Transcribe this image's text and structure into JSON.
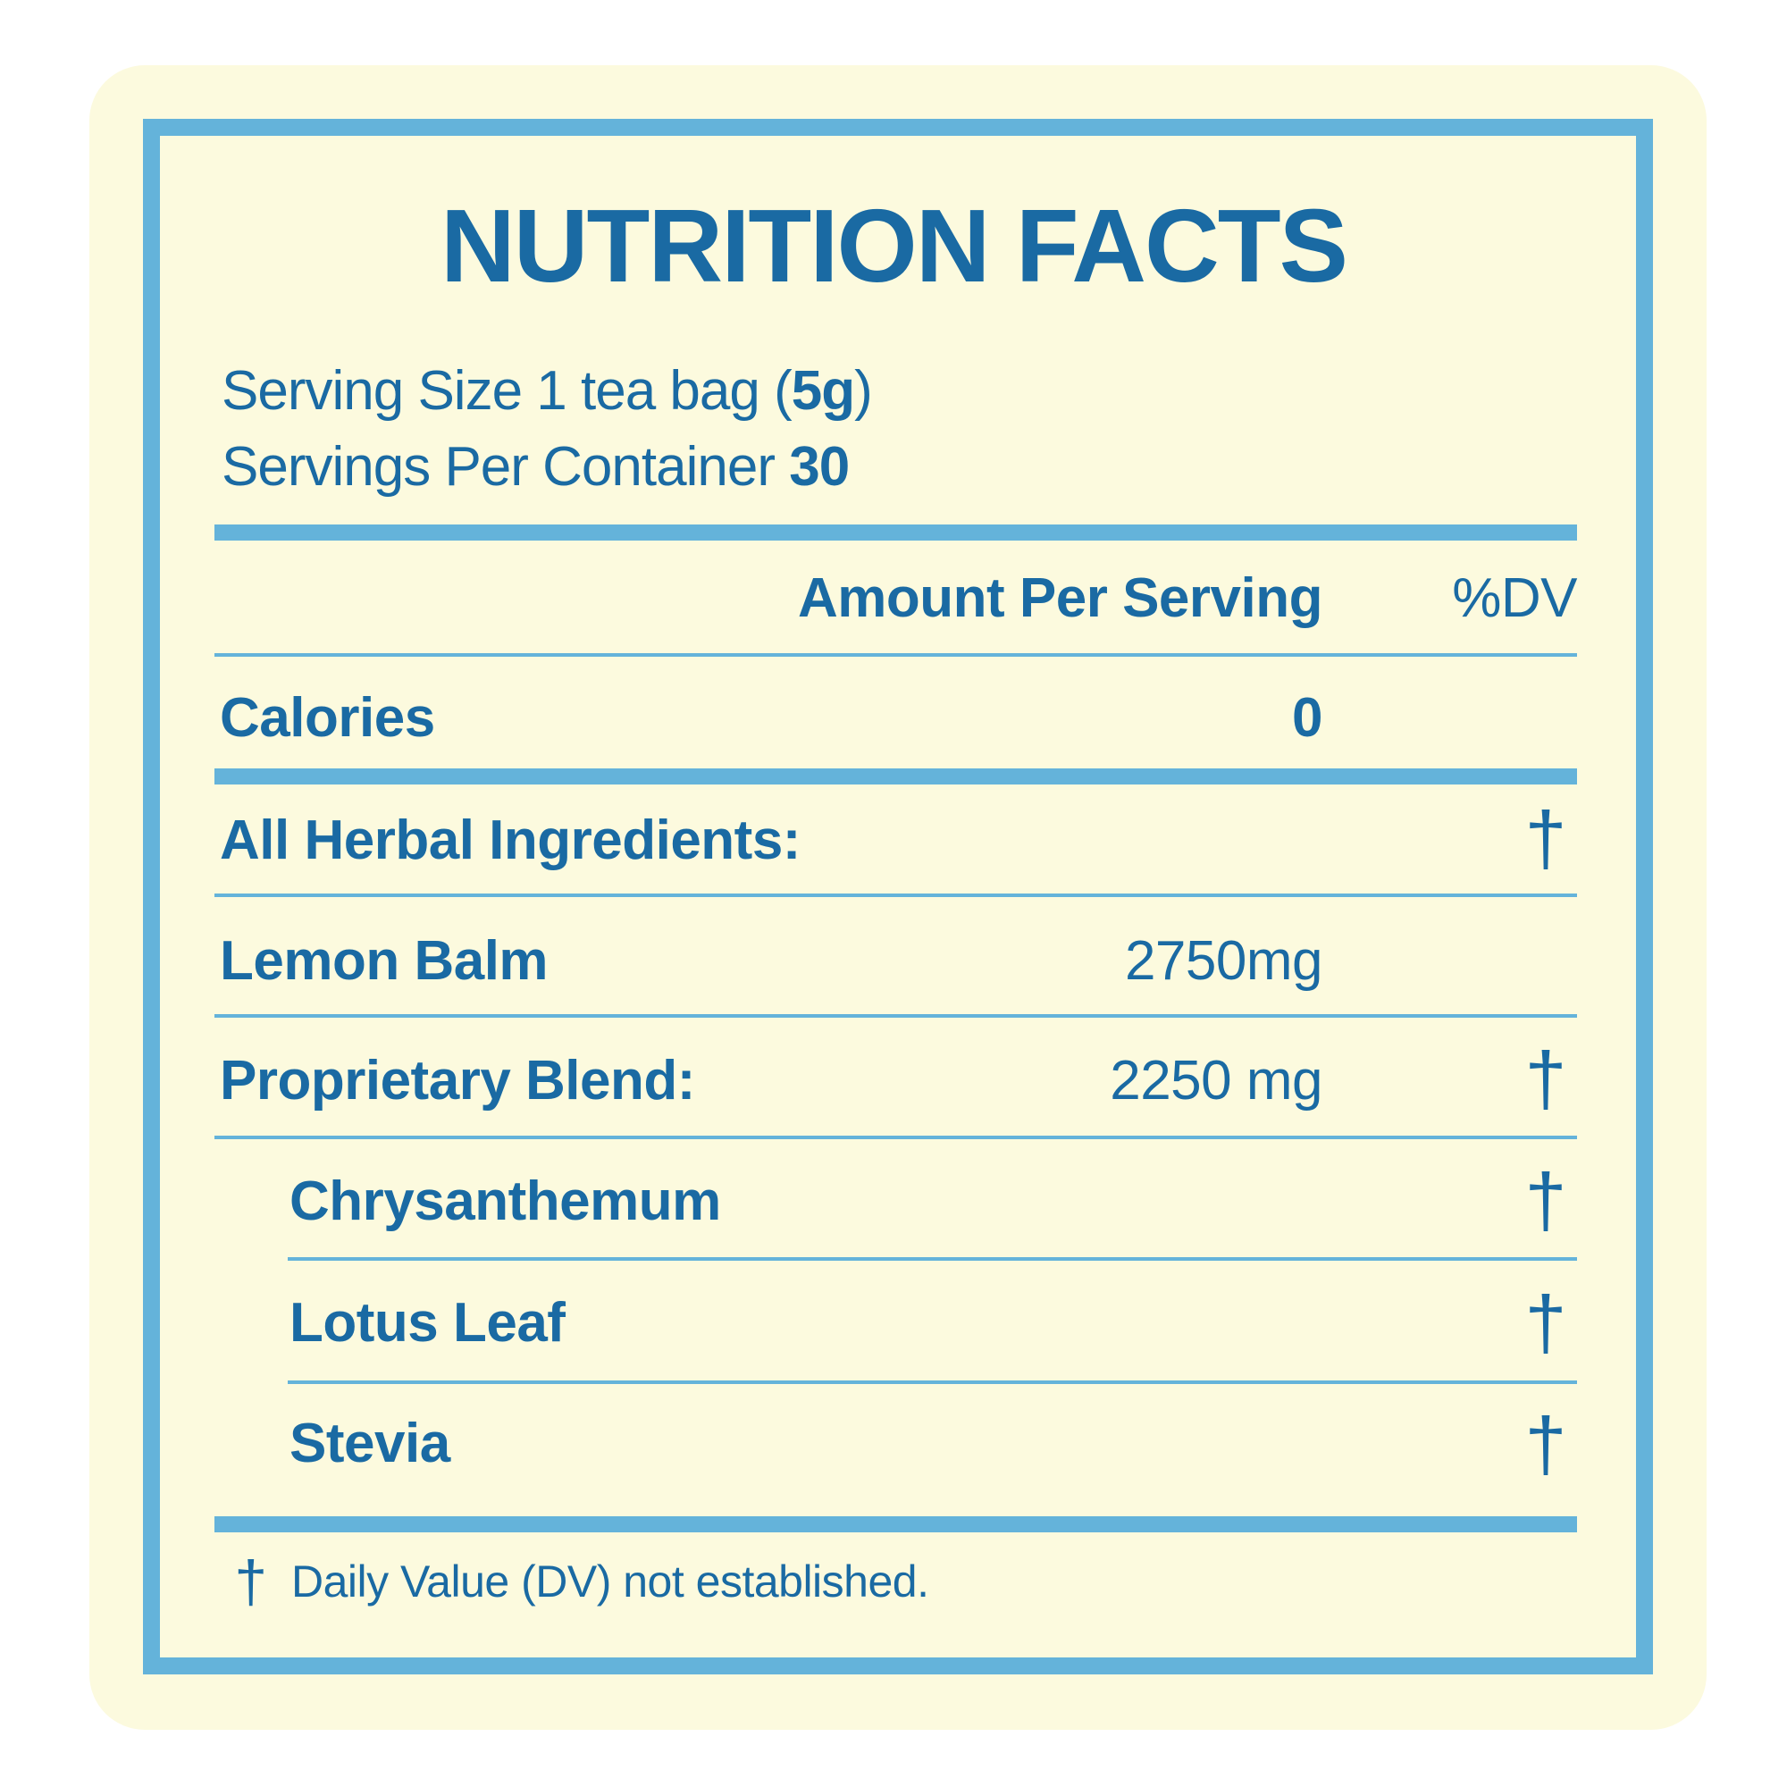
{
  "title": "NUTRITION FACTS",
  "serving": {
    "size_label": "Serving Size 1 tea bag (",
    "size_value": "5g",
    "size_suffix": ")",
    "per_container_label": "Servings Per Container ",
    "per_container_value": "30"
  },
  "header": {
    "amount_label": "Amount Per Serving",
    "dv_label": "%DV"
  },
  "rows": [
    {
      "name": "Calories",
      "amount": "0",
      "dv": ""
    },
    {
      "name": "All Herbal Ingredients:",
      "amount": "",
      "dv": "†"
    },
    {
      "name": "Lemon Balm",
      "amount": "2750mg",
      "dv": ""
    },
    {
      "name": "Proprietary Blend:",
      "amount": "2250 mg",
      "dv": "†"
    },
    {
      "name": "Chrysanthemum",
      "amount": "",
      "dv": "†"
    },
    {
      "name": "Lotus Leaf",
      "amount": "",
      "dv": "†"
    },
    {
      "name": "Stevia",
      "amount": "",
      "dv": "†"
    }
  ],
  "footnote": {
    "symbol": "†",
    "text": "Daily Value (DV) not established."
  },
  "colors": {
    "background": "#fcfade",
    "border": "#64b3da",
    "text": "#1a6aa3"
  }
}
